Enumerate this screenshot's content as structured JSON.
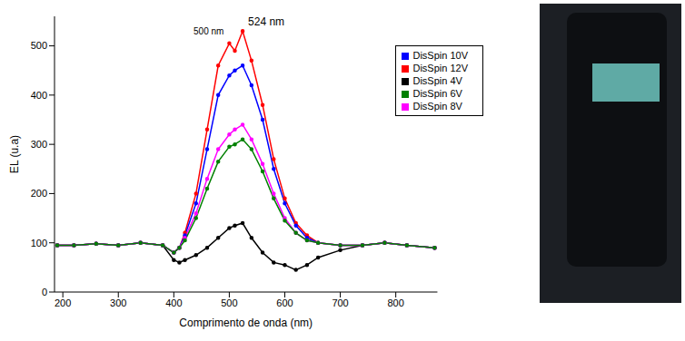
{
  "chart_data": {
    "type": "line",
    "x_label": "Comprimento de onda (nm)",
    "y_label": "EL (u.a)",
    "x": [
      190,
      220,
      260,
      300,
      340,
      380,
      400,
      410,
      420,
      440,
      460,
      480,
      500,
      510,
      524,
      540,
      560,
      580,
      600,
      620,
      640,
      660,
      700,
      740,
      780,
      820,
      870
    ],
    "series": [
      {
        "name": "DisSpin 4V",
        "color": "#000000",
        "values": [
          95,
          95,
          98,
          95,
          100,
          95,
          65,
          60,
          65,
          75,
          90,
          110,
          130,
          135,
          140,
          110,
          80,
          60,
          55,
          45,
          55,
          70,
          85,
          95,
          100,
          95,
          90
        ]
      },
      {
        "name": "DisSpin 12V",
        "color": "#ff0000",
        "values": [
          95,
          95,
          98,
          95,
          100,
          95,
          80,
          90,
          120,
          200,
          330,
          460,
          505,
          490,
          530,
          470,
          380,
          270,
          190,
          140,
          115,
          100,
          95,
          95,
          100,
          95,
          90
        ]
      },
      {
        "name": "DisSpin 10V",
        "color": "#0000ff",
        "values": [
          95,
          95,
          98,
          95,
          100,
          95,
          80,
          90,
          115,
          180,
          290,
          400,
          440,
          450,
          460,
          420,
          350,
          250,
          180,
          135,
          110,
          100,
          95,
          95,
          100,
          95,
          90
        ]
      },
      {
        "name": "DisSpin 8V",
        "color": "#ff00ff",
        "values": [
          95,
          95,
          98,
          95,
          100,
          95,
          80,
          90,
          110,
          160,
          230,
          290,
          320,
          330,
          340,
          310,
          260,
          200,
          150,
          120,
          105,
          100,
          95,
          95,
          100,
          95,
          90
        ]
      },
      {
        "name": "DisSpin 6V",
        "color": "#008000",
        "values": [
          95,
          95,
          98,
          95,
          100,
          95,
          80,
          90,
          105,
          150,
          210,
          265,
          295,
          300,
          310,
          290,
          245,
          190,
          145,
          120,
          105,
          100,
          95,
          95,
          100,
          95,
          90
        ]
      }
    ],
    "xlim": [
      185,
      875
    ],
    "xticks": [
      200,
      300,
      400,
      500,
      600,
      700,
      800
    ],
    "ylim": [
      0,
      560
    ],
    "yticks": [
      0,
      100,
      200,
      300,
      400,
      500
    ],
    "legend": "upper right",
    "marker": "circle",
    "annotations": [
      {
        "text": "500 nm",
        "x": 500,
        "y": 505
      },
      {
        "text": "524 nm",
        "x": 524,
        "y": 530
      }
    ]
  }
}
